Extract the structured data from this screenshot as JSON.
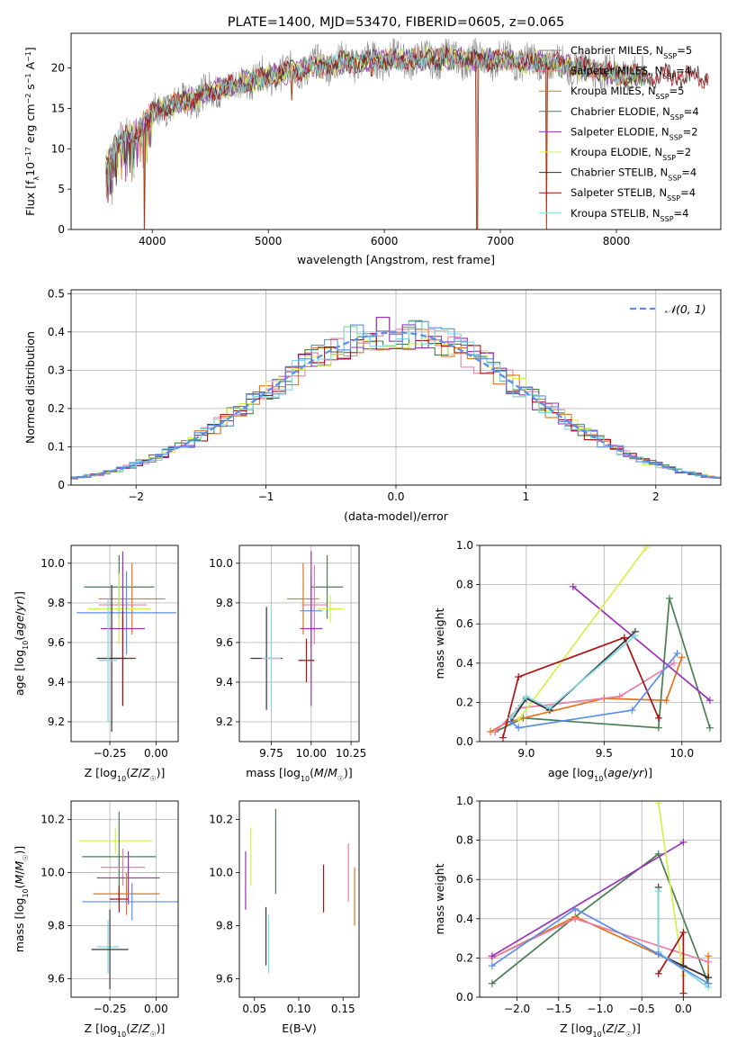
{
  "colors": {
    "axis": "#000000",
    "grid": "#b0b0b0",
    "palette": [
      "#808080",
      "#e87ea6",
      "#e3741b",
      "#4a7d52",
      "#9b30b8",
      "#d4f04a",
      "#333333",
      "#aa1111",
      "#80d8e0",
      "#5b8de8"
    ]
  },
  "chart_data": [
    {
      "id": "spectrum",
      "type": "line",
      "title": "PLATE=1400, MJD=53470, FIBERID=0605, z=0.065",
      "xlabel": "wavelength [Angstrom, rest frame]",
      "ylabel": "Flux [f_λ 10^-17 erg cm^-2 s^-1 A^-1]",
      "xlim": [
        3300,
        8900
      ],
      "ylim": [
        0,
        24.3
      ],
      "xticks": [
        4000,
        5000,
        6000,
        7000,
        8000
      ],
      "yticks": [
        0,
        5,
        10,
        15,
        20
      ],
      "grid": false,
      "legend_position": "right",
      "continuum_anchors": [
        [
          3600,
          8
        ],
        [
          3700,
          11
        ],
        [
          3850,
          12
        ],
        [
          4000,
          14.5
        ],
        [
          4300,
          16
        ],
        [
          4600,
          17.5
        ],
        [
          5000,
          19
        ],
        [
          5500,
          20.5
        ],
        [
          6000,
          21
        ],
        [
          6500,
          21.2
        ],
        [
          7000,
          21
        ],
        [
          7500,
          20.5
        ],
        [
          7900,
          19.5
        ],
        [
          8200,
          19
        ]
      ],
      "deep_dips": [
        [
          3930,
          0
        ],
        [
          5200,
          16
        ],
        [
          5890,
          19
        ],
        [
          6800,
          0
        ],
        [
          7400,
          0
        ]
      ],
      "series": [
        {
          "name": "Chabrier MILES, N_SSP=5",
          "color": "#808080",
          "x_range": [
            3600,
            8250
          ]
        },
        {
          "name": "Salpeter MILES, N_SSP=4",
          "color": "#e87ea6",
          "x_range": [
            3600,
            8250
          ]
        },
        {
          "name": "Kroupa MILES, N_SSP=5",
          "color": "#e3741b",
          "x_range": [
            3600,
            8250
          ]
        },
        {
          "name": "Chabrier ELODIE, N_SSP=4",
          "color": "#4a7d52",
          "x_range": [
            3600,
            8250
          ]
        },
        {
          "name": "Salpeter ELODIE, N_SSP=2",
          "color": "#9b30b8",
          "x_range": [
            3600,
            8250
          ]
        },
        {
          "name": "Kroupa ELODIE, N_SSP=2",
          "color": "#d4f04a",
          "x_range": [
            3600,
            8250
          ]
        },
        {
          "name": "Chabrier STELIB, N_SSP=4",
          "color": "#333333",
          "x_range": [
            3600,
            8800
          ]
        },
        {
          "name": "Salpeter STELIB, N_SSP=4",
          "color": "#aa1111",
          "x_range": [
            3600,
            8800
          ]
        },
        {
          "name": "Kroupa STELIB, N_SSP=4",
          "color": "#80d8e0",
          "x_range": [
            3600,
            8250
          ]
        }
      ]
    },
    {
      "id": "residuals",
      "type": "line",
      "xlabel": "(data-model)/error",
      "ylabel": "Normed distribution",
      "xlim": [
        -2.5,
        2.5
      ],
      "ylim": [
        0,
        0.51
      ],
      "xticks": [
        -2,
        -1,
        0,
        1,
        2
      ],
      "yticks": [
        0.0,
        0.1,
        0.2,
        0.3,
        0.4,
        0.5
      ],
      "grid": true,
      "legend_position": "top-right",
      "legend": [
        "𝒩(0, 1)"
      ],
      "gaussian": {
        "mu": 0,
        "sigma": 1,
        "color": "#5b8de8"
      },
      "bin_width": 0.1,
      "hist_colors": [
        "#e87ea6",
        "#e3741b",
        "#4a7d52",
        "#9b30b8",
        "#d4f04a",
        "#aa1111",
        "#80d8e0",
        "#5b8de8"
      ]
    },
    {
      "id": "age_vs_z",
      "type": "scatter",
      "xlabel": "Z [log10(Z/Z☉)]",
      "ylabel": "age [log10(age/yr)]",
      "xlim": [
        -0.46,
        0.12
      ],
      "ylim": [
        9.1,
        10.09
      ],
      "xticks": [
        -0.25,
        0.0
      ],
      "xtick_labels": [
        "−0.25",
        "0.00"
      ],
      "yticks": [
        9.2,
        9.4,
        9.6,
        9.8,
        10.0
      ],
      "grid": true,
      "points": [
        {
          "x": -0.2,
          "y": 9.88,
          "xerr": 0.19,
          "yerr": 0.16,
          "color": "#4a7d52"
        },
        {
          "x": -0.13,
          "y": 9.82,
          "xerr": 0.18,
          "yerr": 0.18,
          "color": "#e3741b"
        },
        {
          "x": -0.18,
          "y": 9.79,
          "xerr": 0.13,
          "yerr": 0.2,
          "color": "#e87ea6"
        },
        {
          "x": -0.2,
          "y": 9.77,
          "xerr": 0.17,
          "yerr": 0.18,
          "color": "#d4f04a"
        },
        {
          "x": -0.16,
          "y": 9.75,
          "xerr": 0.27,
          "yerr": 0.21,
          "color": "#5b8de8"
        },
        {
          "x": -0.18,
          "y": 9.67,
          "xerr": 0.12,
          "yerr": 0.39,
          "color": "#9b30b8"
        },
        {
          "x": -0.18,
          "y": 9.52,
          "xerr": 0.07,
          "yerr": 0.24,
          "color": "#aa1111"
        },
        {
          "x": -0.24,
          "y": 9.52,
          "xerr": 0.08,
          "yerr": 0.37,
          "color": "#333333"
        },
        {
          "x": -0.26,
          "y": 9.51,
          "xerr": 0.05,
          "yerr": 0.31,
          "color": "#80d8e0"
        }
      ]
    },
    {
      "id": "age_vs_mass",
      "type": "scatter",
      "xlabel": "mass [log10(M/M☉)]",
      "xlim": [
        9.55,
        10.3
      ],
      "ylim": [
        9.1,
        10.09
      ],
      "xticks": [
        9.75,
        10.0,
        10.25
      ],
      "xtick_labels": [
        "9.75",
        "10.00",
        "10.25"
      ],
      "yticks": [
        9.2,
        9.4,
        9.6,
        9.8,
        10.0
      ],
      "grid": true,
      "points": [
        {
          "x": 10.1,
          "y": 9.88,
          "xerr": 0.1,
          "yerr": 0.16,
          "color": "#4a7d52"
        },
        {
          "x": 9.95,
          "y": 9.82,
          "xerr": 0.1,
          "yerr": 0.18,
          "color": "#e3741b"
        },
        {
          "x": 10.02,
          "y": 9.79,
          "xerr": 0.08,
          "yerr": 0.2,
          "color": "#e87ea6"
        },
        {
          "x": 10.12,
          "y": 9.77,
          "xerr": 0.08,
          "yerr": 0.07,
          "color": "#d4f04a"
        },
        {
          "x": 10.0,
          "y": 9.76,
          "xerr": 0.07,
          "yerr": 0.18,
          "color": "#5b8de8"
        },
        {
          "x": 10.0,
          "y": 9.67,
          "xerr": 0.07,
          "yerr": 0.39,
          "color": "#9b30b8"
        },
        {
          "x": 9.97,
          "y": 9.51,
          "xerr": 0.05,
          "yerr": 0.11,
          "color": "#aa1111"
        },
        {
          "x": 9.72,
          "y": 9.52,
          "xerr": 0.1,
          "yerr": 0.26,
          "color": "#333333"
        },
        {
          "x": 9.75,
          "y": 9.52,
          "xerr": 0.06,
          "yerr": 0.26,
          "color": "#80d8e0"
        }
      ]
    },
    {
      "id": "weights_vs_age",
      "type": "line",
      "xlabel": "age [log10(age/yr)]",
      "ylabel": "mass weight",
      "xlim": [
        8.7,
        10.25
      ],
      "ylim": [
        0,
        1
      ],
      "xticks": [
        9.0,
        9.5,
        10.0
      ],
      "xtick_labels": [
        "9.0",
        "9.5",
        "10.0"
      ],
      "yticks": [
        0.0,
        0.2,
        0.4,
        0.6,
        0.8,
        1.0
      ],
      "grid": true,
      "series": [
        {
          "color": "#4a7d52",
          "points": [
            [
              8.8,
              0.05
            ],
            [
              8.98,
              0.12
            ],
            [
              9.85,
              0.07
            ],
            [
              9.92,
              0.73
            ],
            [
              10.18,
              0.07
            ]
          ]
        },
        {
          "color": "#e3741b",
          "points": [
            [
              8.77,
              0.05
            ],
            [
              8.88,
              0.1
            ],
            [
              9.5,
              0.22
            ],
            [
              9.9,
              0.21
            ],
            [
              10.0,
              0.43
            ]
          ]
        },
        {
          "color": "#e87ea6",
          "points": [
            [
              8.8,
              0.05
            ],
            [
              8.95,
              0.17
            ],
            [
              9.6,
              0.23
            ],
            [
              9.95,
              0.4
            ]
          ]
        },
        {
          "color": "#9b30b8",
          "points": [
            [
              9.3,
              0.79
            ],
            [
              10.18,
              0.21
            ]
          ]
        },
        {
          "color": "#d4f04a",
          "points": [
            [
              8.95,
              0.11
            ],
            [
              9.77,
              0.99
            ]
          ]
        },
        {
          "color": "#aa1111",
          "points": [
            [
              8.85,
              0.02
            ],
            [
              8.95,
              0.33
            ],
            [
              9.63,
              0.53
            ],
            [
              9.85,
              0.12
            ]
          ]
        },
        {
          "color": "#333333",
          "points": [
            [
              8.9,
              0.1
            ],
            [
              9.0,
              0.22
            ],
            [
              9.15,
              0.16
            ],
            [
              9.7,
              0.56
            ]
          ]
        },
        {
          "color": "#80d8e0",
          "points": [
            [
              8.9,
              0.12
            ],
            [
              9.0,
              0.23
            ],
            [
              9.15,
              0.17
            ],
            [
              9.7,
              0.54
            ]
          ]
        },
        {
          "color": "#5b8de8",
          "points": [
            [
              8.9,
              0.1
            ],
            [
              8.95,
              0.07
            ],
            [
              9.68,
              0.16
            ],
            [
              9.97,
              0.45
            ]
          ]
        }
      ]
    },
    {
      "id": "mass_vs_z",
      "type": "scatter",
      "xlabel": "Z [log10(Z/Z☉)]",
      "ylabel": "mass [log10(M/M☉)]",
      "xlim": [
        -0.46,
        0.12
      ],
      "ylim": [
        9.53,
        10.27
      ],
      "xticks": [
        -0.25,
        0.0
      ],
      "xtick_labels": [
        "−0.25",
        "0.00"
      ],
      "yticks": [
        9.6,
        9.8,
        10.0,
        10.2
      ],
      "grid": true,
      "points": [
        {
          "x": -0.22,
          "y": 10.12,
          "xerr": 0.2,
          "yerr": 0.05,
          "color": "#d4f04a"
        },
        {
          "x": -0.2,
          "y": 10.06,
          "xerr": 0.2,
          "yerr": 0.17,
          "color": "#4a7d52"
        },
        {
          "x": -0.18,
          "y": 10.02,
          "xerr": 0.12,
          "yerr": 0.07,
          "color": "#e87ea6"
        },
        {
          "x": -0.15,
          "y": 9.98,
          "xerr": 0.17,
          "yerr": 0.1,
          "color": "#9b30b8"
        },
        {
          "x": -0.16,
          "y": 9.92,
          "xerr": 0.18,
          "yerr": 0.08,
          "color": "#e3741b"
        },
        {
          "x": -0.13,
          "y": 9.89,
          "xerr": 0.27,
          "yerr": 0.07,
          "color": "#5b8de8"
        },
        {
          "x": -0.2,
          "y": 9.9,
          "xerr": 0.05,
          "yerr": 0.05,
          "color": "#aa1111"
        },
        {
          "x": -0.26,
          "y": 9.72,
          "xerr": 0.06,
          "yerr": 0.1,
          "color": "#80d8e0"
        },
        {
          "x": -0.25,
          "y": 9.71,
          "xerr": 0.1,
          "yerr": 0.15,
          "color": "#333333"
        }
      ]
    },
    {
      "id": "mass_vs_ebv",
      "type": "scatter",
      "xlabel": "E(B-V)",
      "xlim": [
        0.033,
        0.168
      ],
      "ylim": [
        9.53,
        10.27
      ],
      "xticks": [
        0.05,
        0.1,
        0.15
      ],
      "xtick_labels": [
        "0.05",
        "0.10",
        "0.15"
      ],
      "yticks": [
        9.6,
        9.8,
        10.0,
        10.2
      ],
      "grid": false,
      "points": [
        {
          "x": 0.04,
          "y": 9.97,
          "yerr": 0.11,
          "color": "#9b30b8"
        },
        {
          "x": 0.046,
          "y": 10.06,
          "yerr": 0.11,
          "color": "#d4f04a"
        },
        {
          "x": 0.063,
          "y": 9.76,
          "yerr": 0.11,
          "color": "#333333"
        },
        {
          "x": 0.066,
          "y": 9.73,
          "yerr": 0.11,
          "color": "#80d8e0"
        },
        {
          "x": 0.074,
          "y": 10.08,
          "yerr": 0.16,
          "color": "#4a7d52"
        },
        {
          "x": 0.128,
          "y": 9.94,
          "yerr": 0.09,
          "color": "#aa1111"
        },
        {
          "x": 0.156,
          "y": 10.0,
          "yerr": 0.11,
          "color": "#e87ea6"
        },
        {
          "x": 0.163,
          "y": 9.91,
          "yerr": 0.11,
          "color": "#e3741b"
        }
      ]
    },
    {
      "id": "weights_vs_z",
      "type": "line",
      "xlabel": "Z [log10(Z/Z☉)]",
      "ylabel": "mass weight",
      "xlim": [
        -2.45,
        0.45
      ],
      "ylim": [
        0,
        1
      ],
      "xticks": [
        -2.0,
        -1.5,
        -1.0,
        -0.5,
        0.0
      ],
      "xtick_labels": [
        "−2.0",
        "−1.5",
        "−1.0",
        "−0.5",
        "0.0"
      ],
      "yticks": [
        0.0,
        0.2,
        0.4,
        0.6,
        0.8,
        1.0
      ],
      "grid": true,
      "series": [
        {
          "color": "#4a7d52",
          "points": [
            [
              -2.3,
              0.07
            ],
            [
              -1.3,
              0.41
            ],
            [
              -0.3,
              0.73
            ],
            [
              0.3,
              0.07
            ]
          ]
        },
        {
          "color": "#e3741b",
          "points": [
            [
              -2.3,
              0.2
            ],
            [
              -1.3,
              0.41
            ],
            [
              0.3,
              0.1
            ],
            [
              0.3,
              0.21
            ]
          ]
        },
        {
          "color": "#e87ea6",
          "points": [
            [
              -2.3,
              0.2
            ],
            [
              -1.3,
              0.4
            ],
            [
              0.3,
              0.18
            ]
          ]
        },
        {
          "color": "#9b30b8",
          "points": [
            [
              -2.3,
              0.21
            ],
            [
              0.0,
              0.79
            ]
          ]
        },
        {
          "color": "#d4f04a",
          "points": [
            [
              -0.3,
              0.99
            ],
            [
              0.0,
              0.11
            ]
          ]
        },
        {
          "color": "#aa1111",
          "points": [
            [
              -0.3,
              0.12
            ],
            [
              0.0,
              0.33
            ],
            [
              0.0,
              0.02
            ]
          ]
        },
        {
          "color": "#333333",
          "points": [
            [
              -0.3,
              0.56
            ],
            [
              -0.3,
              0.22
            ],
            [
              0.0,
              0.16
            ],
            [
              0.3,
              0.1
            ]
          ]
        },
        {
          "color": "#80d8e0",
          "points": [
            [
              -0.3,
              0.54
            ],
            [
              -0.3,
              0.23
            ],
            [
              0.3,
              0.05
            ]
          ]
        },
        {
          "color": "#5b8de8",
          "points": [
            [
              -2.3,
              0.16
            ],
            [
              -1.3,
              0.45
            ],
            [
              -0.3,
              0.22
            ],
            [
              0.3,
              0.07
            ]
          ]
        }
      ]
    }
  ]
}
